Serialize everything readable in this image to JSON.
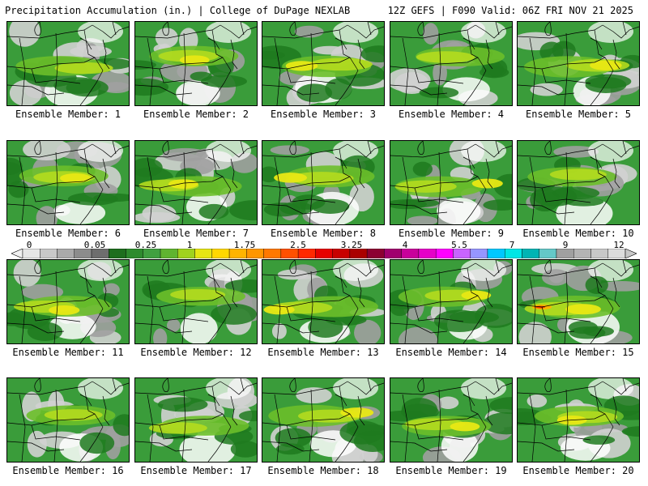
{
  "header": {
    "title_left": "Precipitation Accumulation (in.) | College of DuPage NEXLAB",
    "title_right": "12Z GEFS | F090 Valid: 06Z FRI NOV 21 2025"
  },
  "members": [
    {
      "label": "Ensemble Member: 1",
      "intensity": 0.55
    },
    {
      "label": "Ensemble Member: 2",
      "intensity": 0.6
    },
    {
      "label": "Ensemble Member: 3",
      "intensity": 0.7
    },
    {
      "label": "Ensemble Member: 4",
      "intensity": 0.55
    },
    {
      "label": "Ensemble Member: 5",
      "intensity": 0.7
    },
    {
      "label": "Ensemble Member: 6",
      "intensity": 0.65
    },
    {
      "label": "Ensemble Member: 7",
      "intensity": 0.6
    },
    {
      "label": "Ensemble Member: 8",
      "intensity": 0.75
    },
    {
      "label": "Ensemble Member: 9",
      "intensity": 0.65
    },
    {
      "label": "Ensemble Member: 10",
      "intensity": 0.5
    },
    {
      "label": "Ensemble Member: 11",
      "intensity": 0.65
    },
    {
      "label": "Ensemble Member: 12",
      "intensity": 0.45
    },
    {
      "label": "Ensemble Member: 13",
      "intensity": 0.65
    },
    {
      "label": "Ensemble Member: 14",
      "intensity": 0.6
    },
    {
      "label": "Ensemble Member: 15",
      "intensity": 0.85
    },
    {
      "label": "Ensemble Member: 16",
      "intensity": 0.55
    },
    {
      "label": "Ensemble Member: 17",
      "intensity": 0.55
    },
    {
      "label": "Ensemble Member: 18",
      "intensity": 0.75
    },
    {
      "label": "Ensemble Member: 19",
      "intensity": 0.6
    },
    {
      "label": "Ensemble Member: 20",
      "intensity": 0.6
    }
  ],
  "colorbar": {
    "tick_labels": [
      "0",
      "0.05",
      "0.25",
      "1",
      "1.75",
      "2.5",
      "3.25",
      "4",
      "5.5",
      "7",
      "9",
      "12"
    ],
    "colors": [
      "#e6e6e6",
      "#c8c8c8",
      "#aaaaaa",
      "#8c8c8c",
      "#6e6e6e",
      "#1e6e1e",
      "#2e8b2e",
      "#40a040",
      "#60b430",
      "#a0d21e",
      "#e6e614",
      "#ffd700",
      "#ffb400",
      "#ff9600",
      "#ff7800",
      "#ff5000",
      "#ff2800",
      "#e60000",
      "#c80000",
      "#aa0000",
      "#8c0032",
      "#a0006e",
      "#c8009b",
      "#e600c8",
      "#ff00ff",
      "#c864ff",
      "#9696ff",
      "#00c8ff",
      "#00e6e6",
      "#00b4b4",
      "#64c8c8",
      "#a0a0a0",
      "#b4b4b4",
      "#c8c8c8",
      "#dcdcdc"
    ]
  },
  "map_colors": {
    "background": "#ffffff",
    "light_gray": "#d2d2d2",
    "mid_gray": "#a0a0a0",
    "dark_gray": "#787878",
    "dark_green": "#1e7a1e",
    "green": "#3a9c3a",
    "light_green": "#6cbf2a",
    "yellow_green": "#b4dc1e",
    "yellow": "#e8e814",
    "orange": "#ffb400",
    "red": "#e63c00",
    "borders": "#000000"
  }
}
